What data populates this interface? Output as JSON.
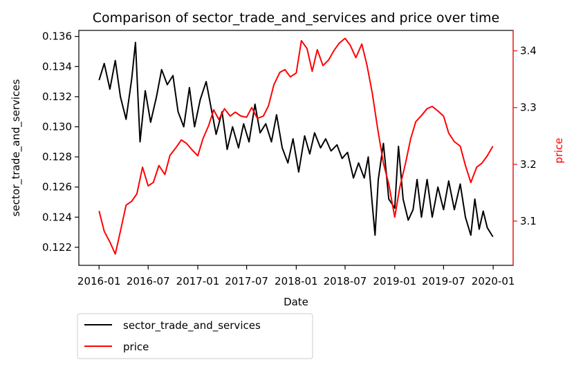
{
  "chart_data": {
    "type": "line",
    "title": "Comparison of sector_trade_and_services and price over time",
    "xlabel": "Date",
    "ylabel_left": "sector_trade_and_services",
    "ylabel_right": "price",
    "x_ticks": [
      "2016-01",
      "2016-07",
      "2017-01",
      "2017-07",
      "2018-01",
      "2018-07",
      "2019-01",
      "2019-07",
      "2020-01"
    ],
    "y_left_ticks": [
      "0.122",
      "0.124",
      "0.126",
      "0.128",
      "0.130",
      "0.132",
      "0.134",
      "0.136"
    ],
    "y_right_ticks": [
      "3.1",
      "3.2",
      "3.3",
      "3.4"
    ],
    "y_left_range": [
      0.1208,
      0.1364
    ],
    "y_right_range": [
      3.022,
      3.436
    ],
    "x_range": [
      "2015-10-18",
      "2020-03-15"
    ],
    "grid": false,
    "legend_position": "below-left",
    "series": [
      {
        "name": "sector_trade_and_services",
        "axis": "left",
        "color": "#000000",
        "points": [
          [
            "2016-01-01",
            0.1331
          ],
          [
            "2016-01-20",
            0.1342
          ],
          [
            "2016-02-10",
            0.1325
          ],
          [
            "2016-03-01",
            0.1344
          ],
          [
            "2016-03-20",
            0.132
          ],
          [
            "2016-04-10",
            0.1305
          ],
          [
            "2016-05-01",
            0.1332
          ],
          [
            "2016-05-15",
            0.1356
          ],
          [
            "2016-06-01",
            0.129
          ],
          [
            "2016-06-20",
            0.1324
          ],
          [
            "2016-07-10",
            0.1303
          ],
          [
            "2016-08-01",
            0.132
          ],
          [
            "2016-08-20",
            0.1338
          ],
          [
            "2016-09-10",
            0.1328
          ],
          [
            "2016-10-01",
            0.1334
          ],
          [
            "2016-10-20",
            0.131
          ],
          [
            "2016-11-10",
            0.13
          ],
          [
            "2016-12-01",
            0.1326
          ],
          [
            "2016-12-20",
            0.13
          ],
          [
            "2017-01-10",
            0.1318
          ],
          [
            "2017-02-01",
            0.133
          ],
          [
            "2017-02-20",
            0.1312
          ],
          [
            "2017-03-10",
            0.1295
          ],
          [
            "2017-04-01",
            0.131
          ],
          [
            "2017-04-20",
            0.1285
          ],
          [
            "2017-05-10",
            0.13
          ],
          [
            "2017-06-01",
            0.1286
          ],
          [
            "2017-06-20",
            0.1302
          ],
          [
            "2017-07-10",
            0.129
          ],
          [
            "2017-08-01",
            0.1315
          ],
          [
            "2017-08-20",
            0.1296
          ],
          [
            "2017-09-10",
            0.1302
          ],
          [
            "2017-10-01",
            0.129
          ],
          [
            "2017-10-20",
            0.1308
          ],
          [
            "2017-11-10",
            0.1286
          ],
          [
            "2017-12-01",
            0.1276
          ],
          [
            "2017-12-20",
            0.1292
          ],
          [
            "2018-01-10",
            0.127
          ],
          [
            "2018-02-01",
            0.1294
          ],
          [
            "2018-02-20",
            0.1282
          ],
          [
            "2018-03-10",
            0.1296
          ],
          [
            "2018-04-01",
            0.1286
          ],
          [
            "2018-04-20",
            0.1292
          ],
          [
            "2018-05-10",
            0.1284
          ],
          [
            "2018-06-01",
            0.1288
          ],
          [
            "2018-06-20",
            0.1279
          ],
          [
            "2018-07-10",
            0.1283
          ],
          [
            "2018-08-01",
            0.1266
          ],
          [
            "2018-08-20",
            0.1276
          ],
          [
            "2018-09-10",
            0.1266
          ],
          [
            "2018-09-25",
            0.128
          ],
          [
            "2018-10-10",
            0.1248
          ],
          [
            "2018-10-20",
            0.1228
          ],
          [
            "2018-11-01",
            0.1265
          ],
          [
            "2018-11-20",
            0.1289
          ],
          [
            "2018-12-10",
            0.1252
          ],
          [
            "2019-01-01",
            0.1246
          ],
          [
            "2019-01-15",
            0.1287
          ],
          [
            "2019-02-01",
            0.1252
          ],
          [
            "2019-02-20",
            0.1238
          ],
          [
            "2019-03-10",
            0.1245
          ],
          [
            "2019-03-25",
            0.1265
          ],
          [
            "2019-04-10",
            0.124
          ],
          [
            "2019-05-01",
            0.1265
          ],
          [
            "2019-05-20",
            0.124
          ],
          [
            "2019-06-10",
            0.126
          ],
          [
            "2019-07-01",
            0.1245
          ],
          [
            "2019-07-20",
            0.1264
          ],
          [
            "2019-08-10",
            0.1245
          ],
          [
            "2019-09-01",
            0.1262
          ],
          [
            "2019-09-20",
            0.124
          ],
          [
            "2019-10-10",
            0.1228
          ],
          [
            "2019-10-25",
            0.1252
          ],
          [
            "2019-11-10",
            0.1232
          ],
          [
            "2019-11-25",
            0.1244
          ],
          [
            "2019-12-10",
            0.1233
          ],
          [
            "2019-12-31",
            0.1227
          ]
        ]
      },
      {
        "name": "price",
        "axis": "right",
        "color": "#ff0000",
        "points": [
          [
            "2016-01-01",
            3.118
          ],
          [
            "2016-01-20",
            3.082
          ],
          [
            "2016-02-10",
            3.063
          ],
          [
            "2016-03-01",
            3.042
          ],
          [
            "2016-03-20",
            3.082
          ],
          [
            "2016-04-10",
            3.128
          ],
          [
            "2016-05-01",
            3.135
          ],
          [
            "2016-05-20",
            3.148
          ],
          [
            "2016-06-10",
            3.195
          ],
          [
            "2016-07-01",
            3.162
          ],
          [
            "2016-07-20",
            3.168
          ],
          [
            "2016-08-10",
            3.198
          ],
          [
            "2016-09-01",
            3.182
          ],
          [
            "2016-09-20",
            3.216
          ],
          [
            "2016-10-10",
            3.228
          ],
          [
            "2016-11-01",
            3.243
          ],
          [
            "2016-11-20",
            3.237
          ],
          [
            "2016-12-10",
            3.226
          ],
          [
            "2017-01-01",
            3.215
          ],
          [
            "2017-01-20",
            3.245
          ],
          [
            "2017-02-10",
            3.268
          ],
          [
            "2017-03-01",
            3.296
          ],
          [
            "2017-03-20",
            3.279
          ],
          [
            "2017-04-10",
            3.298
          ],
          [
            "2017-05-01",
            3.285
          ],
          [
            "2017-05-20",
            3.292
          ],
          [
            "2017-06-10",
            3.285
          ],
          [
            "2017-07-01",
            3.283
          ],
          [
            "2017-07-20",
            3.3
          ],
          [
            "2017-08-10",
            3.281
          ],
          [
            "2017-09-01",
            3.285
          ],
          [
            "2017-09-20",
            3.303
          ],
          [
            "2017-10-10",
            3.34
          ],
          [
            "2017-11-01",
            3.362
          ],
          [
            "2017-11-20",
            3.367
          ],
          [
            "2017-12-10",
            3.354
          ],
          [
            "2018-01-01",
            3.361
          ],
          [
            "2018-01-20",
            3.418
          ],
          [
            "2018-02-10",
            3.404
          ],
          [
            "2018-03-01",
            3.364
          ],
          [
            "2018-03-20",
            3.402
          ],
          [
            "2018-04-10",
            3.374
          ],
          [
            "2018-05-01",
            3.384
          ],
          [
            "2018-05-20",
            3.4
          ],
          [
            "2018-06-10",
            3.414
          ],
          [
            "2018-07-01",
            3.422
          ],
          [
            "2018-07-20",
            3.41
          ],
          [
            "2018-08-10",
            3.388
          ],
          [
            "2018-09-01",
            3.412
          ],
          [
            "2018-09-20",
            3.375
          ],
          [
            "2018-10-10",
            3.325
          ],
          [
            "2018-10-30",
            3.262
          ],
          [
            "2018-11-20",
            3.202
          ],
          [
            "2018-12-10",
            3.165
          ],
          [
            "2019-01-01",
            3.107
          ],
          [
            "2019-01-20",
            3.16
          ],
          [
            "2019-02-10",
            3.202
          ],
          [
            "2019-03-01",
            3.245
          ],
          [
            "2019-03-20",
            3.275
          ],
          [
            "2019-04-10",
            3.286
          ],
          [
            "2019-05-01",
            3.298
          ],
          [
            "2019-05-20",
            3.302
          ],
          [
            "2019-06-10",
            3.294
          ],
          [
            "2019-07-01",
            3.285
          ],
          [
            "2019-07-20",
            3.255
          ],
          [
            "2019-08-10",
            3.24
          ],
          [
            "2019-09-01",
            3.232
          ],
          [
            "2019-09-20",
            3.198
          ],
          [
            "2019-10-10",
            3.168
          ],
          [
            "2019-11-01",
            3.195
          ],
          [
            "2019-11-20",
            3.202
          ],
          [
            "2019-12-10",
            3.215
          ],
          [
            "2019-12-31",
            3.232
          ]
        ]
      }
    ]
  }
}
